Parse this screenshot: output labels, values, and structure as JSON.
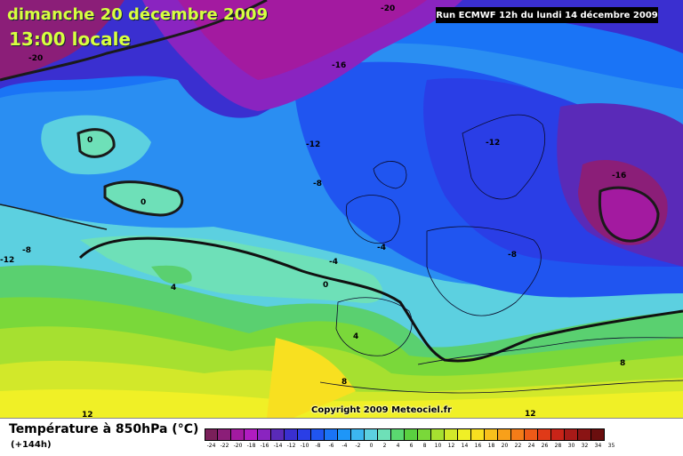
{
  "header": {
    "date_title": "dimanche 20 décembre 2009",
    "local_time": "13:00 locale",
    "run_info": "Run ECMWF 12h du lundi 14 décembre 2009"
  },
  "copyright": "Copyright 2009 Meteociel.fr",
  "footer": {
    "parameter_label": "Température à 850hPa (°C)",
    "lead_time": "(+144h)"
  },
  "legend": {
    "ticks": [
      "-24",
      "-22",
      "-20",
      "-18",
      "-16",
      "-14",
      "-12",
      "-10",
      "-8",
      "-6",
      "-4",
      "-2",
      "0",
      "2",
      "4",
      "6",
      "8",
      "10",
      "12",
      "14",
      "16",
      "18",
      "20",
      "22",
      "24",
      "26",
      "28",
      "30",
      "32",
      "34",
      "35"
    ],
    "colors": [
      "#7a1f5a",
      "#8b1e78",
      "#a31aa0",
      "#b01cc0",
      "#8a24c0",
      "#5a2ab8",
      "#3a2fd0",
      "#2a3ee6",
      "#2055f0",
      "#1a74f6",
      "#1e96f8",
      "#3cb6f0",
      "#5cd0e0",
      "#6ee0b8",
      "#5ad870",
      "#5ad040",
      "#7ad83a",
      "#a6e030",
      "#d2e82a",
      "#f0f026",
      "#f8e020",
      "#f8c01c",
      "#f8a01a",
      "#f47c18",
      "#ee5a18",
      "#e03a18",
      "#c82418",
      "#a81a18",
      "#8a1414",
      "#6a0e0e"
    ]
  },
  "map_labels": [
    {
      "text": "-20"
    },
    {
      "text": "-20"
    },
    {
      "text": "-16"
    },
    {
      "text": "-16"
    },
    {
      "text": "-12"
    },
    {
      "text": "-12"
    },
    {
      "text": "-12"
    },
    {
      "text": "-8"
    },
    {
      "text": "-8"
    },
    {
      "text": "-8"
    },
    {
      "text": "-4"
    },
    {
      "text": "-4"
    },
    {
      "text": "0"
    },
    {
      "text": "0"
    },
    {
      "text": "0"
    },
    {
      "text": "4"
    },
    {
      "text": "4"
    },
    {
      "text": "8"
    },
    {
      "text": "8"
    },
    {
      "text": "12"
    },
    {
      "text": "12"
    }
  ],
  "colors": {
    "title_text": "#d8ff40",
    "freezing_line": "#111111",
    "contour_line": "#1a1a1a"
  }
}
